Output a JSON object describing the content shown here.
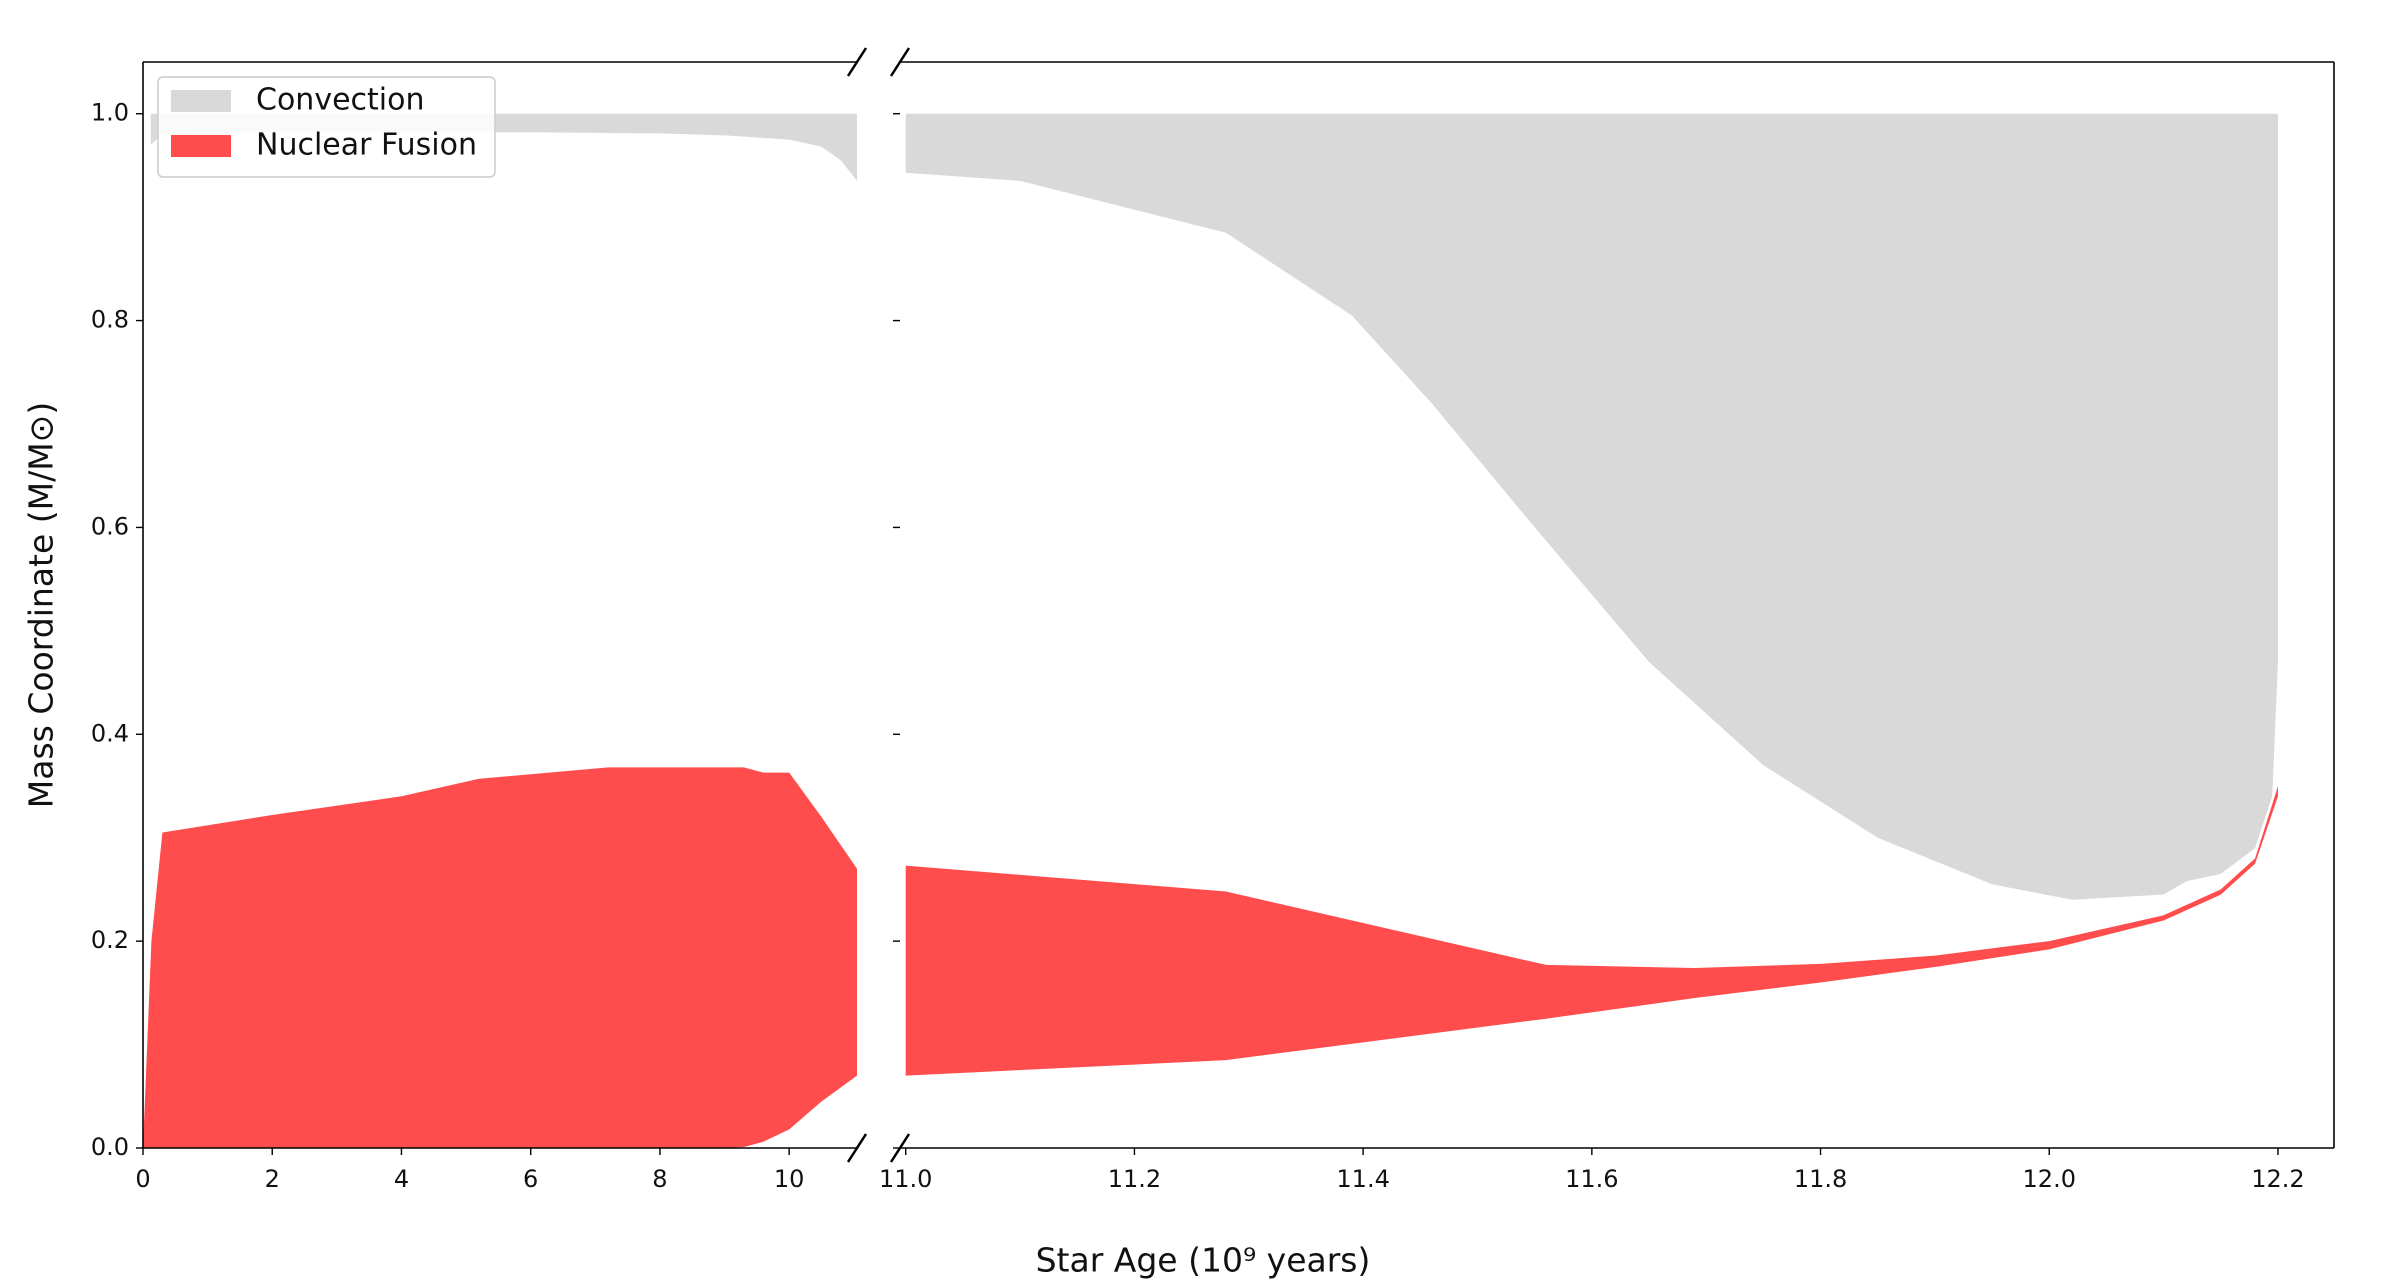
{
  "chart_data": [
    {
      "type": "area",
      "x_label": "Star Age (10⁹ years)",
      "y_label": "Mass Coordinate (M/M⊙)",
      "legend": "upper left",
      "xlim": [
        0,
        11.05
      ],
      "xticks": [
        0,
        2,
        4,
        6,
        8,
        10
      ],
      "ylim": [
        0,
        1.05
      ],
      "yticks": [
        {
          "value": 0,
          "label": "0.0"
        },
        0.2,
        0.4,
        0.6,
        0.8,
        {
          "value": 1,
          "label": "1.0"
        }
      ],
      "series": [
        {
          "name": "Convection",
          "color": "#d9d9d9",
          "x": [
            0.12,
            0.3,
            2,
            4,
            6,
            8,
            9,
            10,
            10.5,
            10.8,
            11.05
          ],
          "lower": [
            0.97,
            0.98,
            0.982,
            0.982,
            0.982,
            0.981,
            0.979,
            0.975,
            0.968,
            0.955,
            0.935
          ],
          "upper": [
            1,
            1,
            1,
            1,
            1,
            1,
            1,
            1,
            1,
            1,
            1
          ]
        },
        {
          "name": "Nuclear Fusion",
          "color": "#ff4d4d",
          "x": [
            0,
            0.13,
            0.3,
            2,
            4,
            5.2,
            7.2,
            9,
            9.3,
            9.6,
            10,
            10.5,
            11.05
          ],
          "lower": [
            0,
            0,
            0,
            0,
            0,
            0,
            0,
            0,
            0.001,
            0.006,
            0.018,
            0.045,
            0.07
          ],
          "upper": [
            0,
            0.2,
            0.305,
            0.322,
            0.34,
            0.357,
            0.368,
            0.368,
            0.368,
            0.363,
            0.363,
            0.32,
            0.27
          ]
        }
      ]
    },
    {
      "type": "area",
      "xlim": [
        10.995,
        12.249
      ],
      "xticks": [
        {
          "value": 11,
          "label": "11.0"
        },
        11.2,
        11.4,
        11.6,
        11.8,
        {
          "value": 12,
          "label": "12.0"
        },
        12.2
      ],
      "ylim": [
        0,
        1.05
      ],
      "series": [
        {
          "color": "#d9d9d9",
          "x": [
            11.0,
            11.1,
            11.28,
            11.39,
            11.46,
            11.55,
            11.65,
            11.75,
            11.85,
            11.95,
            12.02,
            12.1,
            12.12,
            12.15,
            12.18,
            12.195,
            12.2
          ],
          "lower": [
            0.943,
            0.935,
            0.885,
            0.805,
            0.72,
            0.6,
            0.47,
            0.37,
            0.3,
            0.255,
            0.24,
            0.245,
            0.258,
            0.265,
            0.29,
            0.34,
            0.47
          ],
          "upper": [
            1,
            1,
            1,
            1,
            1,
            1,
            1,
            1,
            1,
            1,
            1,
            1,
            1,
            1,
            1,
            1,
            1
          ]
        },
        {
          "color": "#ff4d4d",
          "x": [
            11.0,
            11.28,
            11.56,
            11.69,
            11.8,
            11.9,
            12.0,
            12.1,
            12.15,
            12.18,
            12.2
          ],
          "lower": [
            0.07,
            0.085,
            0.125,
            0.145,
            0.16,
            0.175,
            0.192,
            0.22,
            0.245,
            0.275,
            0.34
          ],
          "upper": [
            0.273,
            0.248,
            0.177,
            0.174,
            0.178,
            0.186,
            0.2,
            0.225,
            0.25,
            0.28,
            0.35
          ]
        }
      ]
    }
  ]
}
